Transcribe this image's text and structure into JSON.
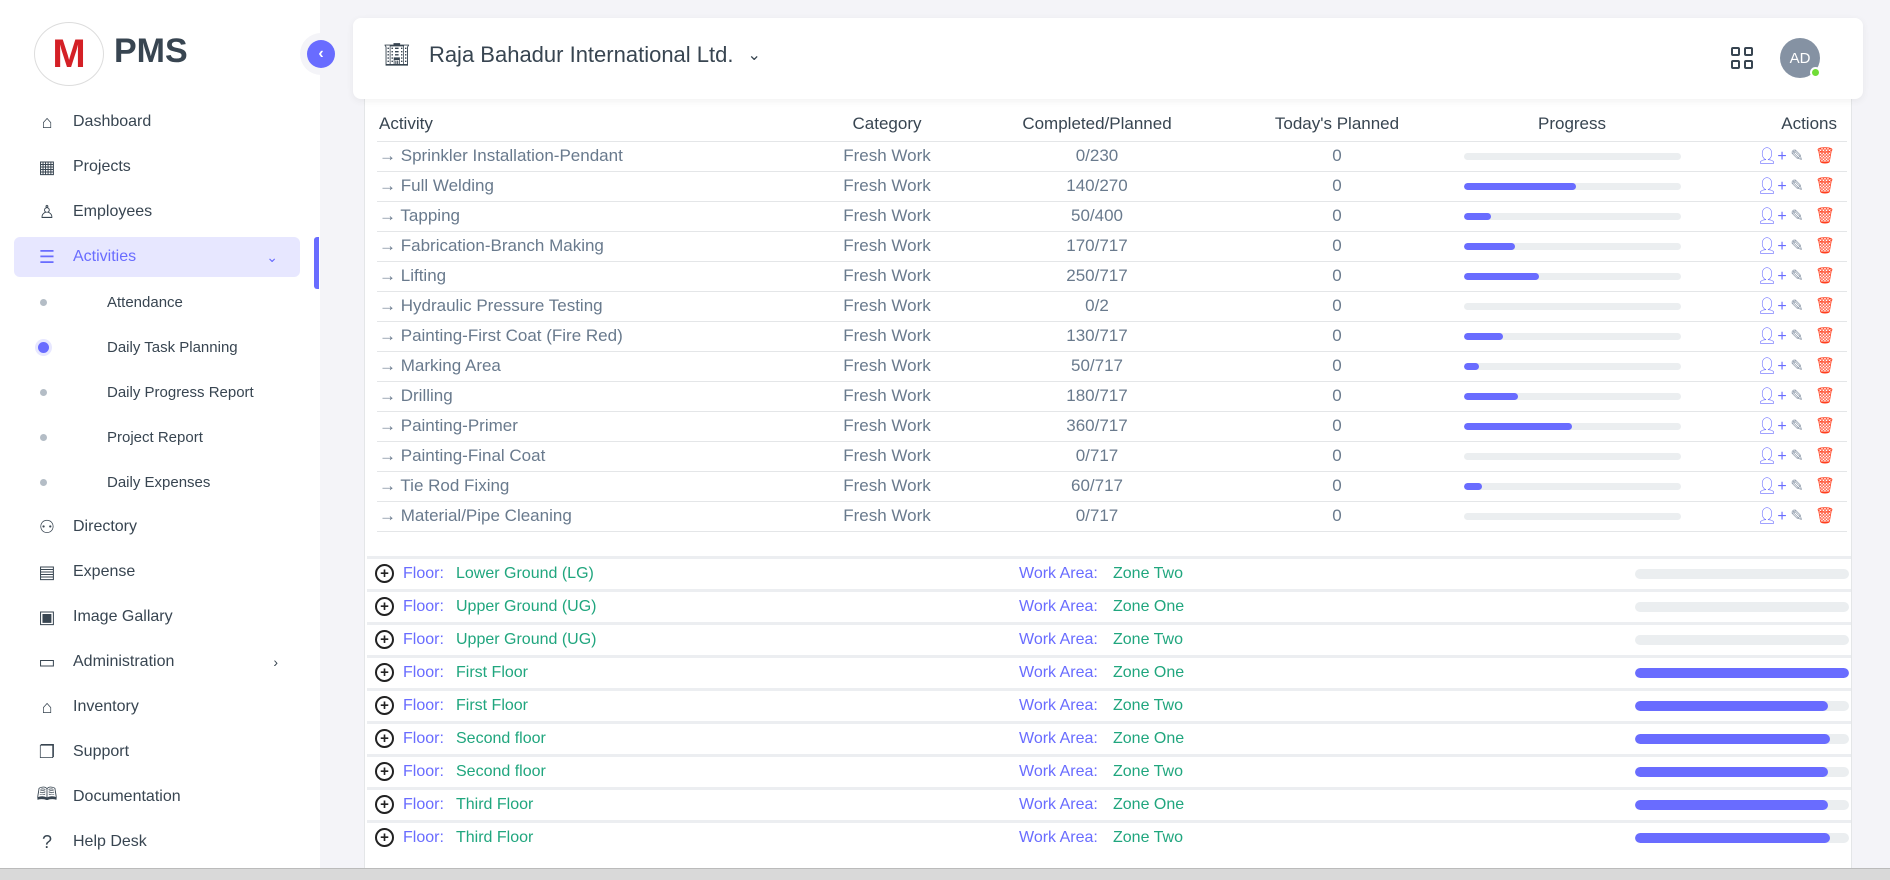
{
  "brand": {
    "logo_text": "M",
    "name": "PMS"
  },
  "sidebar": {
    "items": [
      {
        "label": "Dashboard",
        "icon": "home-icon"
      },
      {
        "label": "Projects",
        "icon": "building-icon"
      },
      {
        "label": "Employees",
        "icon": "user-icon"
      },
      {
        "label": "Activities",
        "icon": "list-icon",
        "active": true,
        "expanded": true
      },
      {
        "label": "Directory",
        "icon": "users-icon"
      },
      {
        "label": "Expense",
        "icon": "receipt-icon"
      },
      {
        "label": "Image Gallary",
        "icon": "gallery-icon"
      },
      {
        "label": "Administration",
        "icon": "archive-icon",
        "has_submenu": true
      },
      {
        "label": "Inventory",
        "icon": "store-icon"
      },
      {
        "label": "Support",
        "icon": "copy-icon"
      },
      {
        "label": "Documentation",
        "icon": "book-icon"
      },
      {
        "label": "Help Desk",
        "icon": "question-icon"
      }
    ],
    "sub_items": [
      {
        "label": "Attendance"
      },
      {
        "label": "Daily Task Planning",
        "active": true
      },
      {
        "label": "Daily Progress Report"
      },
      {
        "label": "Project Report"
      },
      {
        "label": "Daily Expenses"
      }
    ]
  },
  "header": {
    "project": "Raja Bahadur International Ltd.",
    "avatar": "AD"
  },
  "table": {
    "headers": [
      "Activity",
      "Category",
      "Completed/Planned",
      "Today's Planned",
      "Progress",
      "Actions"
    ],
    "rows": [
      {
        "activity": "Sprinkler Installation-Pendant",
        "category": "Fresh Work",
        "completed": "0/230",
        "today": "0",
        "progress": 0
      },
      {
        "activity": "Full Welding",
        "category": "Fresh Work",
        "completed": "140/270",
        "today": "0",
        "progress": 51.9
      },
      {
        "activity": "Tapping",
        "category": "Fresh Work",
        "completed": "50/400",
        "today": "0",
        "progress": 12.5
      },
      {
        "activity": "Fabrication-Branch Making",
        "category": "Fresh Work",
        "completed": "170/717",
        "today": "0",
        "progress": 23.7
      },
      {
        "activity": "Lifting",
        "category": "Fresh Work",
        "completed": "250/717",
        "today": "0",
        "progress": 34.9
      },
      {
        "activity": "Hydraulic Pressure Testing",
        "category": "Fresh Work",
        "completed": "0/2",
        "today": "0",
        "progress": 0
      },
      {
        "activity": "Painting-First Coat (Fire Red)",
        "category": "Fresh Work",
        "completed": "130/717",
        "today": "0",
        "progress": 18.1
      },
      {
        "activity": "Marking Area",
        "category": "Fresh Work",
        "completed": "50/717",
        "today": "0",
        "progress": 7
      },
      {
        "activity": "Drilling",
        "category": "Fresh Work",
        "completed": "180/717",
        "today": "0",
        "progress": 25.1
      },
      {
        "activity": "Painting-Primer",
        "category": "Fresh Work",
        "completed": "360/717",
        "today": "0",
        "progress": 50.2
      },
      {
        "activity": "Painting-Final Coat",
        "category": "Fresh Work",
        "completed": "0/717",
        "today": "0",
        "progress": 0
      },
      {
        "activity": "Tie Rod Fixing",
        "category": "Fresh Work",
        "completed": "60/717",
        "today": "0",
        "progress": 8.4
      },
      {
        "activity": "Material/Pipe Cleaning",
        "category": "Fresh Work",
        "completed": "0/717",
        "today": "0",
        "progress": 0
      }
    ]
  },
  "floors": {
    "floor_label": "Floor:",
    "area_label": "Work Area:",
    "rows": [
      {
        "floor": "Lower Ground (LG)",
        "area": "Zone Two",
        "progress": 0
      },
      {
        "floor": "Upper Ground (UG)",
        "area": "Zone One",
        "progress": 0
      },
      {
        "floor": "Upper Ground (UG)",
        "area": "Zone Two",
        "progress": 0
      },
      {
        "floor": "First Floor",
        "area": "Zone One",
        "progress": 100
      },
      {
        "floor": "First Floor",
        "area": "Zone Two",
        "progress": 90
      },
      {
        "floor": "Second floor",
        "area": "Zone One",
        "progress": 91
      },
      {
        "floor": "Second floor",
        "area": "Zone Two",
        "progress": 90
      },
      {
        "floor": "Third Floor",
        "area": "Zone One",
        "progress": 90
      },
      {
        "floor": "Third Floor",
        "area": "Zone Two",
        "progress": 91
      }
    ]
  },
  "colors": {
    "accent": "#696cff",
    "green": "#20a67e",
    "danger": "#ff3e1d"
  }
}
